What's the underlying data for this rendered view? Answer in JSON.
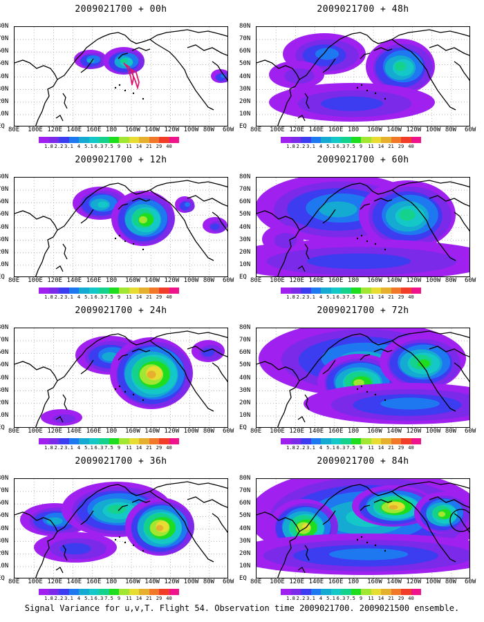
{
  "panels": [
    {
      "title": "2009021700 + 00h"
    },
    {
      "title": "2009021700 + 48h"
    },
    {
      "title": "2009021700 + 12h"
    },
    {
      "title": "2009021700 + 60h"
    },
    {
      "title": "2009021700 + 24h"
    },
    {
      "title": "2009021700 + 72h"
    },
    {
      "title": "2009021700 + 36h"
    },
    {
      "title": "2009021700 + 84h"
    }
  ],
  "lat_labels": [
    "80N",
    "70N",
    "60N",
    "50N",
    "40N",
    "30N",
    "20N",
    "10N",
    "EQ"
  ],
  "lon_labels": [
    "80E",
    "100E",
    "120E",
    "140E",
    "160E",
    "180",
    "160W",
    "140W",
    "120W",
    "100W",
    "80W",
    "60W"
  ],
  "colorbar": {
    "labels": [
      "1.8",
      "2.2",
      "3.1",
      "4",
      "5.1",
      "6.3",
      "7.5",
      "9",
      "11",
      "14",
      "21",
      "29",
      "40"
    ],
    "colors": [
      "#a020f0",
      "#7a2ae8",
      "#3c3cf0",
      "#1e78f0",
      "#14aad2",
      "#14c8c8",
      "#14d28c",
      "#1edc1e",
      "#a0e632",
      "#e6dc32",
      "#e6af2d",
      "#f07828",
      "#f03c28",
      "#f0148c"
    ]
  },
  "caption": "Signal Variance for u,v,T. Flight 54. Observation time 2009021700. 2009021500 ensemble."
}
